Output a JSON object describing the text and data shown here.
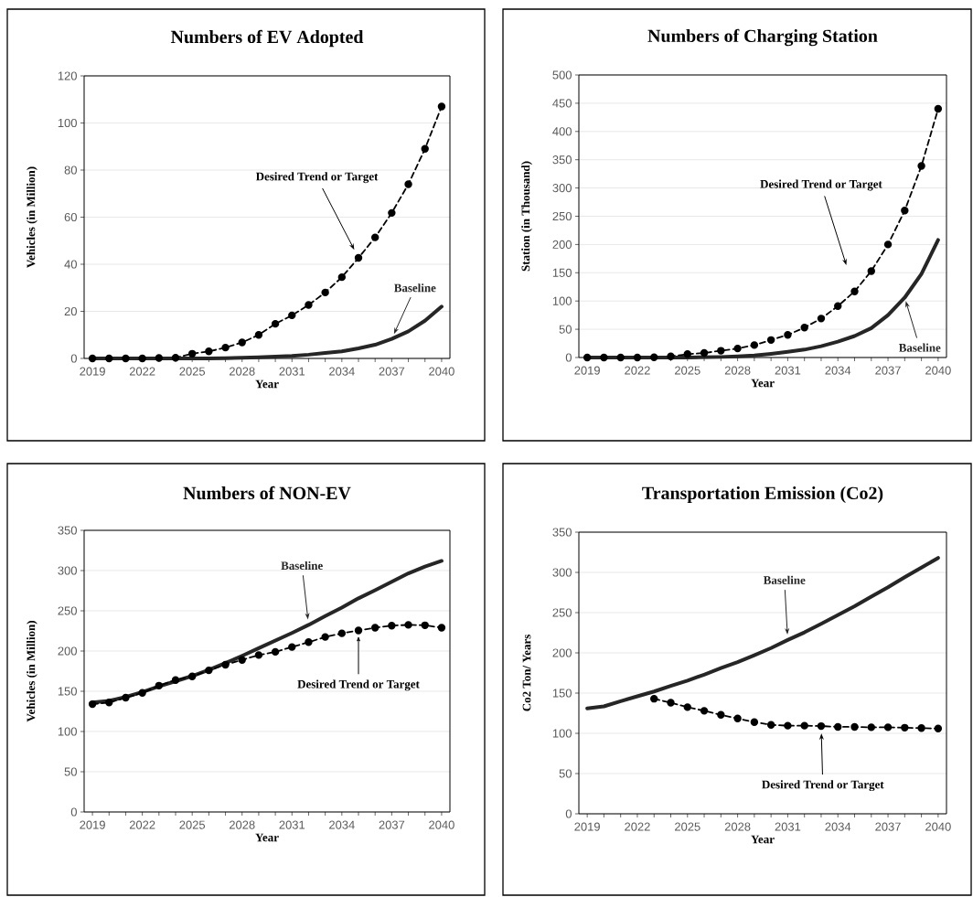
{
  "chart_data": [
    {
      "type": "line",
      "title": "Numbers of EV Adopted",
      "xlabel": "Year",
      "ylabel": "Vehicles (in Million)",
      "grid": "y",
      "x": [
        2019,
        2020,
        2021,
        2022,
        2023,
        2024,
        2025,
        2026,
        2027,
        2028,
        2029,
        2030,
        2031,
        2032,
        2033,
        2034,
        2035,
        2036,
        2037,
        2038,
        2039,
        2040
      ],
      "xlim": [
        2018.5,
        2040.5
      ],
      "xticks": [
        2019,
        {
          "value": 2020,
          "label": null
        },
        {
          "value": 2021,
          "label": null
        },
        2022,
        {
          "value": 2023,
          "label": null
        },
        {
          "value": 2024,
          "label": null
        },
        2025,
        {
          "value": 2026,
          "label": null
        },
        {
          "value": 2027,
          "label": null
        },
        2028,
        {
          "value": 2029,
          "label": null
        },
        {
          "value": 2030,
          "label": null
        },
        2031,
        {
          "value": 2032,
          "label": null
        },
        {
          "value": 2033,
          "label": null
        },
        2034,
        {
          "value": 2035,
          "label": null
        },
        {
          "value": 2036,
          "label": null
        },
        2037,
        {
          "value": 2038,
          "label": null
        },
        {
          "value": 2039,
          "label": null
        },
        2040
      ],
      "ylim": [
        0,
        120
      ],
      "yticks": [
        0,
        20,
        40,
        60,
        80,
        100,
        120
      ],
      "series": [
        {
          "name": "Desired Trend or Target",
          "color": "#000000",
          "marker": "circle",
          "line_style": "dashed",
          "values": [
            0,
            0,
            0,
            0,
            0.2,
            0.3,
            2,
            3,
            4.6,
            6.8,
            10,
            14.7,
            18.3,
            22.7,
            28,
            34.5,
            42.7,
            51.4,
            61.8,
            74,
            89,
            107
          ]
        },
        {
          "name": "Baseline",
          "color": "#262626",
          "marker": "none",
          "line_style": "solid",
          "values": [
            0,
            0,
            0,
            0,
            0,
            0,
            0,
            0,
            0.1,
            0.3,
            0.5,
            0.8,
            1.1,
            1.6,
            2.3,
            3,
            4.3,
            5.8,
            8.3,
            11.5,
            16,
            22
          ]
        }
      ]
    },
    {
      "type": "line",
      "title": "Numbers of Charging Station",
      "xlabel": "Year",
      "ylabel": "Station (in Thousand)",
      "grid": "y",
      "x": [
        2019,
        2020,
        2021,
        2022,
        2023,
        2024,
        2025,
        2026,
        2027,
        2028,
        2029,
        2030,
        2031,
        2032,
        2033,
        2034,
        2035,
        2036,
        2037,
        2038,
        2039,
        2040
      ],
      "xlim": [
        2018.5,
        2040.5
      ],
      "xticks": [
        2019,
        {
          "value": 2020,
          "label": null
        },
        {
          "value": 2021,
          "label": null
        },
        2022,
        {
          "value": 2023,
          "label": null
        },
        {
          "value": 2024,
          "label": null
        },
        2025,
        {
          "value": 2026,
          "label": null
        },
        {
          "value": 2027,
          "label": null
        },
        2028,
        {
          "value": 2029,
          "label": null
        },
        {
          "value": 2030,
          "label": null
        },
        2031,
        {
          "value": 2032,
          "label": null
        },
        {
          "value": 2033,
          "label": null
        },
        2034,
        {
          "value": 2035,
          "label": null
        },
        {
          "value": 2036,
          "label": null
        },
        2037,
        {
          "value": 2038,
          "label": null
        },
        {
          "value": 2039,
          "label": null
        },
        2040
      ],
      "ylim": [
        0,
        500
      ],
      "yticks": [
        0,
        50,
        100,
        150,
        200,
        250,
        300,
        350,
        400,
        450,
        500
      ],
      "series": [
        {
          "name": "Desired Trend or Target",
          "color": "#000000",
          "marker": "circle",
          "line_style": "dashed",
          "values": [
            0,
            0,
            0,
            0,
            0.5,
            2,
            6,
            8,
            12,
            16,
            22,
            31,
            40,
            53,
            69,
            91,
            117,
            153,
            200,
            260,
            339,
            440
          ]
        },
        {
          "name": "Baseline",
          "color": "#262626",
          "marker": "none",
          "line_style": "solid",
          "values": [
            0,
            0,
            0,
            0,
            0,
            0,
            0,
            0.5,
            1,
            2,
            3.5,
            6.5,
            10,
            14,
            20,
            28,
            38,
            52,
            75,
            106,
            148,
            208
          ]
        }
      ]
    },
    {
      "type": "line",
      "title": "Numbers of NON-EV",
      "xlabel": "Year",
      "ylabel": "Vehicles (in Million)",
      "grid": "y",
      "x": [
        2019,
        2020,
        2021,
        2022,
        2023,
        2024,
        2025,
        2026,
        2027,
        2028,
        2029,
        2030,
        2031,
        2032,
        2033,
        2034,
        2035,
        2036,
        2037,
        2038,
        2039,
        2040
      ],
      "xlim": [
        2018.5,
        2040.5
      ],
      "xticks": [
        2019,
        {
          "value": 2020,
          "label": null
        },
        {
          "value": 2021,
          "label": null
        },
        2022,
        {
          "value": 2023,
          "label": null
        },
        {
          "value": 2024,
          "label": null
        },
        2025,
        {
          "value": 2026,
          "label": null
        },
        {
          "value": 2027,
          "label": null
        },
        2028,
        {
          "value": 2029,
          "label": null
        },
        {
          "value": 2030,
          "label": null
        },
        2031,
        {
          "value": 2032,
          "label": null
        },
        {
          "value": 2033,
          "label": null
        },
        2034,
        {
          "value": 2035,
          "label": null
        },
        {
          "value": 2036,
          "label": null
        },
        2037,
        {
          "value": 2038,
          "label": null
        },
        {
          "value": 2039,
          "label": null
        },
        2040
      ],
      "ylim": [
        0,
        350
      ],
      "yticks": [
        0,
        50,
        100,
        150,
        200,
        250,
        300,
        350
      ],
      "series": [
        {
          "name": "Baseline",
          "color": "#262626",
          "marker": "none",
          "line_style": "solid",
          "values": [
            136,
            138,
            143,
            149,
            156,
            162.5,
            169,
            176.5,
            185,
            194,
            203.5,
            213,
            222.5,
            232.5,
            243.5,
            254,
            265.5,
            275.5,
            286,
            296.5,
            305,
            312
          ]
        },
        {
          "name": "Desired Trend or Target",
          "color": "#000000",
          "marker": "circle",
          "line_style": "dashed",
          "values": [
            134,
            136,
            142,
            148,
            157,
            164,
            168.5,
            176,
            183,
            189,
            195,
            199,
            205,
            211,
            217.5,
            222,
            225.5,
            229,
            231.5,
            232.5,
            232,
            229
          ]
        }
      ]
    },
    {
      "type": "line",
      "title": "Transportation Emission (Co2)",
      "xlabel": "Year",
      "ylabel": "Co2 Ton/ Years",
      "grid": "y",
      "x": [
        2019,
        2020,
        2021,
        2022,
        2023,
        2024,
        2025,
        2026,
        2027,
        2028,
        2029,
        2030,
        2031,
        2032,
        2033,
        2034,
        2035,
        2036,
        2037,
        2038,
        2039,
        2040
      ],
      "xlim": [
        2018.5,
        2040.5
      ],
      "xticks": [
        2019,
        {
          "value": 2020,
          "label": null
        },
        {
          "value": 2021,
          "label": null
        },
        2022,
        {
          "value": 2023,
          "label": null
        },
        {
          "value": 2024,
          "label": null
        },
        2025,
        {
          "value": 2026,
          "label": null
        },
        {
          "value": 2027,
          "label": null
        },
        2028,
        {
          "value": 2029,
          "label": null
        },
        {
          "value": 2030,
          "label": null
        },
        2031,
        {
          "value": 2032,
          "label": null
        },
        {
          "value": 2033,
          "label": null
        },
        2034,
        {
          "value": 2035,
          "label": null
        },
        {
          "value": 2036,
          "label": null
        },
        2037,
        {
          "value": 2038,
          "label": null
        },
        {
          "value": 2039,
          "label": null
        },
        2040
      ],
      "ylim": [
        0,
        350
      ],
      "yticks": [
        0,
        50,
        100,
        150,
        200,
        250,
        300,
        350
      ],
      "series": [
        {
          "name": "Baseline",
          "color": "#262626",
          "marker": "none",
          "line_style": "solid",
          "values": [
            131,
            133.5,
            140,
            146,
            152,
            159,
            165.5,
            173,
            181,
            188.5,
            197,
            206,
            216,
            225.5,
            236,
            247,
            258,
            270,
            281.5,
            294,
            306,
            318
          ]
        },
        {
          "name": "Desired Trend or Target",
          "color": "#000000",
          "marker": "circle",
          "line_style": "dashed",
          "values": [
            null,
            null,
            null,
            null,
            143,
            138,
            132.5,
            128,
            123,
            118.5,
            114,
            110.5,
            109.5,
            109.5,
            109,
            108,
            108,
            107.5,
            107.5,
            107,
            106.5,
            106
          ]
        }
      ]
    }
  ]
}
